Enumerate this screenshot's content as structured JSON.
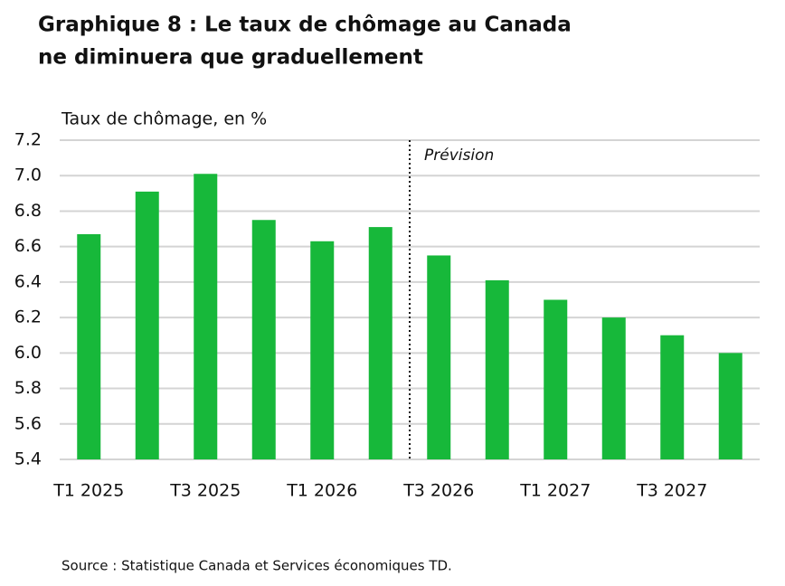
{
  "chart_data": {
    "type": "bar",
    "title": [
      "Graphique 8 : Le taux de chômage au Canada",
      "ne diminuera que graduellement"
    ],
    "y_axis_label": "Taux de chômage, en %",
    "annotation": "Prévision",
    "source": "Source : Statistique Canada et Services économiques TD.",
    "categories": [
      "T1 2025",
      null,
      "T3 2025",
      null,
      "T1 2026",
      null,
      "T3 2026",
      null,
      "T1 2027",
      null,
      "T3 2027",
      null
    ],
    "values": [
      6.67,
      6.91,
      7.01,
      6.75,
      6.63,
      6.71,
      6.55,
      6.41,
      6.3,
      6.2,
      6.1,
      6.0
    ],
    "color": "#17b83a",
    "ylim": [
      5.4,
      7.2
    ],
    "yticks": [
      5.4,
      5.6,
      5.8,
      {
        "value": 6,
        "label": "6.0"
      },
      6.2,
      6.4,
      6.6,
      6.8,
      {
        "value": 7,
        "label": "7.0"
      },
      7.2
    ],
    "grid": true
  }
}
